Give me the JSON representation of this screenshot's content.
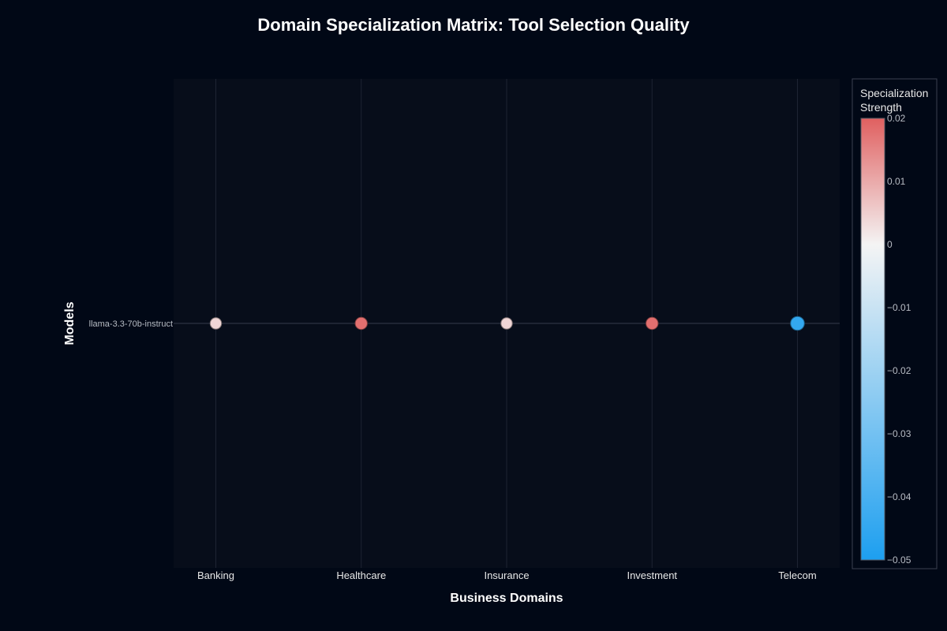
{
  "chart_data": {
    "type": "scatter",
    "title": "Domain Specialization Matrix: Tool Selection Quality",
    "xlabel": "Business Domains",
    "ylabel": "Models",
    "categories": [
      "Banking",
      "Healthcare",
      "Insurance",
      "Investment",
      "Telecom"
    ],
    "models": [
      "llama-3.3-70b-instruct"
    ],
    "points": [
      {
        "domain": "Banking",
        "model": "llama-3.3-70b-instruct",
        "value": 0.004
      },
      {
        "domain": "Healthcare",
        "model": "llama-3.3-70b-instruct",
        "value": 0.018
      },
      {
        "domain": "Insurance",
        "model": "llama-3.3-70b-instruct",
        "value": 0.004
      },
      {
        "domain": "Investment",
        "model": "llama-3.3-70b-instruct",
        "value": 0.018
      },
      {
        "domain": "Telecom",
        "model": "llama-3.3-70b-instruct",
        "value": -0.045
      }
    ],
    "colorbar": {
      "title_lines": [
        "Specialization",
        "Strength"
      ],
      "range": [
        -0.05,
        0.02
      ],
      "ticks": [
        0.02,
        0.01,
        0,
        -0.01,
        -0.02,
        -0.03,
        -0.04,
        -0.05
      ],
      "tick_labels": [
        "0.02",
        "0.01",
        "0",
        "−0.01",
        "−0.02",
        "−0.03",
        "−0.04",
        "−0.05"
      ],
      "colors": {
        "low": "#1d9ff0",
        "mid": "#f4f4f4",
        "high": "#e06060"
      }
    },
    "grid": true,
    "colors": {
      "background": "#010816",
      "plot_background": "#070d1a",
      "grid": "#1e2433"
    }
  }
}
